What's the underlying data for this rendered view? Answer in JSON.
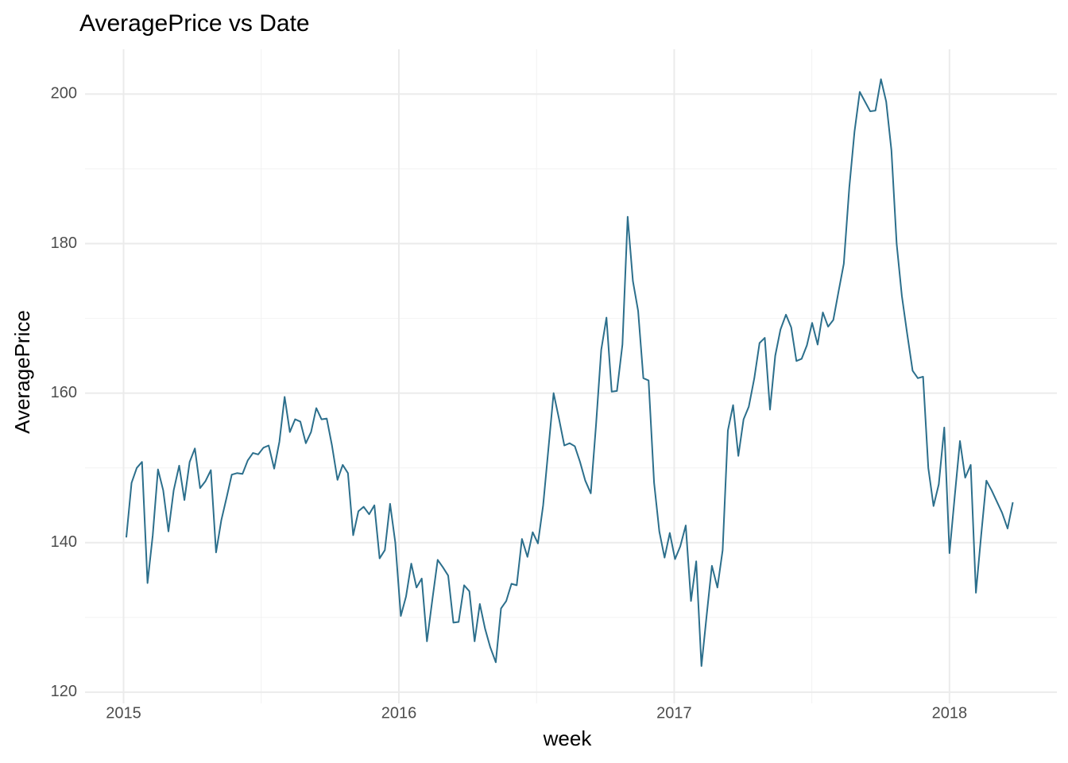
{
  "chart_data": {
    "type": "line",
    "title": "AveragePrice vs Date",
    "x_label": "week",
    "y_label": "AveragePrice",
    "color": "#2c6f8c",
    "grid": true,
    "xlim": [
      2014.86,
      2018.39
    ],
    "xticks": [
      2015,
      2016,
      2017,
      2018
    ],
    "ylim": [
      118.5,
      206
    ],
    "yticks": [
      120,
      140,
      160,
      180,
      200
    ],
    "x": [
      2015.01,
      2015.029,
      2015.048,
      2015.067,
      2015.087,
      2015.106,
      2015.125,
      2015.144,
      2015.163,
      2015.182,
      2015.202,
      2015.221,
      2015.24,
      2015.259,
      2015.278,
      2015.297,
      2015.317,
      2015.336,
      2015.355,
      2015.374,
      2015.393,
      2015.412,
      2015.432,
      2015.451,
      2015.47,
      2015.489,
      2015.508,
      2015.527,
      2015.547,
      2015.566,
      2015.585,
      2015.604,
      2015.623,
      2015.642,
      2015.662,
      2015.681,
      2015.7,
      2015.719,
      2015.738,
      2015.757,
      2015.777,
      2015.796,
      2015.815,
      2015.834,
      2015.853,
      2015.872,
      2015.892,
      2015.911,
      2015.93,
      2015.949,
      2015.968,
      2015.987,
      2016.007,
      2016.026,
      2016.045,
      2016.064,
      2016.083,
      2016.102,
      2016.122,
      2016.141,
      2016.16,
      2016.179,
      2016.198,
      2016.217,
      2016.237,
      2016.256,
      2016.275,
      2016.294,
      2016.313,
      2016.332,
      2016.352,
      2016.371,
      2016.39,
      2016.409,
      2016.428,
      2016.447,
      2016.467,
      2016.486,
      2016.505,
      2016.524,
      2016.543,
      2016.562,
      2016.582,
      2016.601,
      2016.62,
      2016.639,
      2016.658,
      2016.677,
      2016.697,
      2016.716,
      2016.735,
      2016.754,
      2016.773,
      2016.792,
      2016.812,
      2016.831,
      2016.85,
      2016.869,
      2016.888,
      2016.907,
      2016.927,
      2016.946,
      2016.965,
      2016.984,
      2017.003,
      2017.022,
      2017.042,
      2017.061,
      2017.08,
      2017.099,
      2017.118,
      2017.137,
      2017.157,
      2017.176,
      2017.195,
      2017.214,
      2017.233,
      2017.252,
      2017.271,
      2017.291,
      2017.31,
      2017.329,
      2017.348,
      2017.367,
      2017.386,
      2017.406,
      2017.425,
      2017.444,
      2017.463,
      2017.482,
      2017.501,
      2017.521,
      2017.54,
      2017.559,
      2017.578,
      2017.597,
      2017.616,
      2017.636,
      2017.655,
      2017.674,
      2017.693,
      2017.712,
      2017.731,
      2017.751,
      2017.77,
      2017.789,
      2017.808,
      2017.827,
      2017.846,
      2017.866,
      2017.885,
      2017.904,
      2017.923,
      2017.942,
      2017.961,
      2017.981,
      2018.0,
      2018.019,
      2018.038,
      2018.057,
      2018.077,
      2018.096,
      2018.115,
      2018.134,
      2018.153,
      2018.172,
      2018.191,
      2018.211,
      2018.23
    ],
    "values": [
      140.7,
      148,
      150,
      150.8,
      134.6,
      141,
      149.8,
      147,
      141.5,
      147,
      150.3,
      145.7,
      150.8,
      152.6,
      147.3,
      148.2,
      149.7,
      138.7,
      143,
      146,
      149.1,
      149.3,
      149.2,
      151,
      152,
      151.8,
      152.7,
      153,
      149.9,
      153.5,
      159.5,
      154.8,
      156.5,
      156.2,
      153.3,
      154.8,
      158,
      156.5,
      156.6,
      153,
      148.4,
      150.4,
      149.3,
      141,
      144.2,
      144.8,
      143.8,
      145,
      137.9,
      139,
      145.2,
      140,
      130.2,
      132.8,
      137.2,
      134,
      135.2,
      126.8,
      132.5,
      137.7,
      136.7,
      135.6,
      129.3,
      129.4,
      134.3,
      133.5,
      126.8,
      131.8,
      128.5,
      126,
      124,
      131.2,
      132.2,
      134.5,
      134.3,
      140.5,
      138.1,
      141.4,
      139.9,
      145,
      152.5,
      160,
      156.5,
      153,
      153.3,
      152.9,
      150.8,
      148.3,
      146.6,
      155.7,
      165.8,
      170.1,
      160.2,
      160.3,
      166.5,
      183.6,
      175,
      171,
      162,
      161.7,
      148,
      141.5,
      138,
      141.3,
      137.8,
      139.5,
      142.3,
      132.2,
      137.5,
      123.5,
      130.3,
      136.9,
      134,
      139,
      155,
      158.4,
      151.6,
      156.5,
      158.2,
      162,
      166.7,
      167.4,
      157.8,
      165,
      168.5,
      170.5,
      168.8,
      164.3,
      164.6,
      166.4,
      169.4,
      166.5,
      170.8,
      168.9,
      169.8,
      173.6,
      177.3,
      187.5,
      195,
      200.3,
      199,
      197.7,
      197.8,
      202,
      199,
      192.5,
      180,
      173,
      168,
      163,
      162,
      162.2,
      150,
      144.9,
      147.8,
      155.4,
      138.6,
      146.2,
      153.6,
      148.7,
      150.4,
      133.3,
      141,
      148.3,
      147,
      145.5,
      144,
      141.9,
      145.4
    ]
  }
}
